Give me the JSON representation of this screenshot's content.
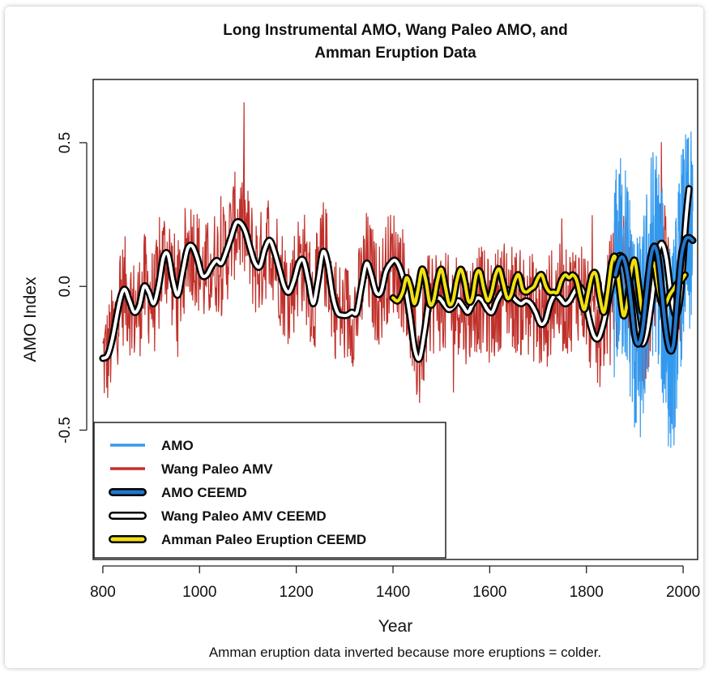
{
  "chart_data": {
    "type": "line",
    "title_line1": "Long Instrumental AMO, Wang Paleo AMO, and",
    "title_line2": "Amman Eruption Data",
    "xlabel": "Year",
    "ylabel": "AMO Index",
    "footnote": "Amman eruption data inverted because more eruptions = colder.",
    "xlim": [
      780,
      2030
    ],
    "ylim": [
      -0.95,
      0.72
    ],
    "xticks": [
      800,
      1000,
      1200,
      1400,
      1600,
      1800,
      2000
    ],
    "xtick_labels": [
      "800",
      "1000",
      "1200",
      "1400",
      "1600",
      "1800",
      "2000"
    ],
    "yticks": [
      -0.5,
      0.0,
      0.5
    ],
    "ytick_labels": [
      "-0.5",
      "0.0",
      "0.5"
    ],
    "grid": false,
    "legend_position": "bottom-left",
    "colors": {
      "amo": "#3399ee",
      "wang": "#c0302a",
      "amo_ceemd": "#2277cc",
      "wang_ceemd": "#ffffff",
      "amman_ceemd": "#f0e010",
      "outline": "#000000"
    },
    "legend": [
      {
        "label": "AMO",
        "style": "thin",
        "color": "#3399ee"
      },
      {
        "label": "Wang Paleo AMV",
        "style": "thin",
        "color": "#c0302a"
      },
      {
        "label": "AMO CEEMD",
        "style": "thick",
        "color": "#2277cc"
      },
      {
        "label": "Wang Paleo AMV CEEMD",
        "style": "thick",
        "color": "#ffffff"
      },
      {
        "label": "Amman Paleo Eruption CEEMD",
        "style": "thick",
        "color": "#f0e010"
      }
    ],
    "series": [
      {
        "name": "Wang Paleo AMV CEEMD",
        "x": [
          800,
          810,
          820,
          835,
          845,
          855,
          865,
          875,
          885,
          895,
          905,
          915,
          925,
          935,
          945,
          955,
          965,
          975,
          985,
          995,
          1005,
          1015,
          1025,
          1035,
          1045,
          1055,
          1065,
          1075,
          1085,
          1095,
          1105,
          1115,
          1125,
          1135,
          1145,
          1155,
          1165,
          1175,
          1185,
          1195,
          1205,
          1215,
          1225,
          1235,
          1245,
          1255,
          1265,
          1275,
          1285,
          1295,
          1305,
          1315,
          1325,
          1335,
          1345,
          1355,
          1365,
          1375,
          1385,
          1395,
          1405,
          1415,
          1425,
          1435,
          1445,
          1455,
          1465,
          1475,
          1485,
          1495,
          1505,
          1515,
          1525,
          1535,
          1545,
          1555,
          1565,
          1575,
          1585,
          1595,
          1605,
          1615,
          1625,
          1635,
          1645,
          1655,
          1665,
          1675,
          1685,
          1695,
          1705,
          1715,
          1725,
          1735,
          1745,
          1755,
          1765,
          1775,
          1785,
          1795,
          1805,
          1815,
          1825,
          1835,
          1845,
          1855,
          1865,
          1875,
          1885,
          1895,
          1905,
          1915,
          1925,
          1935,
          1945,
          1955,
          1965,
          1975,
          1985,
          1995,
          2005,
          2012
        ],
        "y": [
          -0.25,
          -0.24,
          -0.18,
          -0.05,
          -0.01,
          -0.05,
          -0.09,
          -0.07,
          0.0,
          -0.02,
          -0.06,
          0.0,
          0.1,
          0.11,
          0.02,
          -0.03,
          0.05,
          0.13,
          0.14,
          0.1,
          0.04,
          0.04,
          0.07,
          0.09,
          0.08,
          0.12,
          0.17,
          0.22,
          0.22,
          0.19,
          0.13,
          0.08,
          0.07,
          0.13,
          0.16,
          0.12,
          0.06,
          0.0,
          -0.02,
          0.02,
          0.08,
          0.09,
          0.02,
          -0.06,
          0.02,
          0.12,
          0.08,
          -0.03,
          -0.09,
          -0.1,
          -0.1,
          -0.09,
          -0.09,
          0.0,
          0.08,
          0.04,
          -0.02,
          -0.02,
          0.05,
          0.08,
          0.09,
          0.06,
          0.0,
          -0.1,
          -0.22,
          -0.25,
          -0.16,
          -0.05,
          -0.05,
          -0.04,
          -0.06,
          -0.08,
          -0.07,
          -0.05,
          -0.07,
          -0.09,
          -0.06,
          -0.04,
          -0.05,
          -0.08,
          -0.09,
          -0.05,
          -0.02,
          -0.01,
          -0.03,
          -0.05,
          -0.06,
          -0.05,
          -0.06,
          -0.09,
          -0.13,
          -0.12,
          -0.06,
          -0.03,
          -0.04,
          -0.06,
          -0.05,
          -0.02,
          0.0,
          -0.03,
          -0.11,
          -0.17,
          -0.18,
          -0.13,
          -0.05,
          0.03,
          0.1,
          0.1,
          0.05,
          -0.04,
          -0.15,
          -0.2,
          -0.16,
          -0.05,
          0.09,
          0.15,
          0.1,
          -0.03,
          -0.1,
          -0.02,
          0.22,
          0.34
        ]
      },
      {
        "name": "Amman Paleo Eruption CEEMD",
        "x": [
          1400,
          1410,
          1420,
          1428,
          1436,
          1444,
          1452,
          1460,
          1468,
          1476,
          1484,
          1492,
          1500,
          1508,
          1516,
          1524,
          1532,
          1540,
          1548,
          1556,
          1564,
          1572,
          1580,
          1588,
          1596,
          1604,
          1612,
          1620,
          1628,
          1636,
          1644,
          1652,
          1660,
          1668,
          1676,
          1684,
          1692,
          1700,
          1708,
          1716,
          1724,
          1732,
          1740,
          1748,
          1756,
          1764,
          1772,
          1780,
          1788,
          1796,
          1804,
          1812,
          1820,
          1828,
          1836,
          1844,
          1852,
          1860,
          1868,
          1876,
          1884,
          1892,
          1900,
          1908,
          1916,
          1924,
          1932,
          1940,
          1948,
          1956,
          1964,
          1972,
          1980,
          1988,
          1996,
          2004
        ],
        "y": [
          -0.04,
          -0.05,
          -0.02,
          0.03,
          0.0,
          -0.06,
          -0.01,
          0.06,
          0.02,
          -0.06,
          -0.05,
          0.02,
          0.06,
          0.0,
          -0.06,
          -0.05,
          0.02,
          0.06,
          0.02,
          -0.05,
          -0.04,
          0.04,
          0.05,
          -0.01,
          -0.05,
          -0.02,
          0.04,
          0.06,
          0.01,
          -0.04,
          -0.03,
          0.02,
          0.04,
          -0.01,
          -0.02,
          -0.01,
          0.0,
          0.03,
          0.04,
          0.0,
          -0.02,
          -0.02,
          -0.02,
          0.02,
          0.04,
          0.03,
          0.04,
          0.02,
          -0.04,
          -0.08,
          -0.02,
          0.04,
          0.04,
          -0.04,
          -0.09,
          -0.02,
          0.08,
          0.1,
          0.0,
          -0.1,
          -0.06,
          0.05,
          0.09,
          0.0,
          -0.09,
          -0.04,
          0.05,
          0.08,
          0.0,
          -0.06,
          -0.06,
          -0.03,
          -0.01,
          0.01,
          0.02,
          0.04
        ]
      },
      {
        "name": "AMO CEEMD",
        "x": [
          1860,
          1868,
          1876,
          1884,
          1892,
          1900,
          1908,
          1916,
          1924,
          1932,
          1940,
          1948,
          1956,
          1964,
          1972,
          1980,
          1988,
          1996,
          2004,
          2012,
          2020
        ],
        "y": [
          0.04,
          0.09,
          0.1,
          0.05,
          -0.05,
          -0.17,
          -0.2,
          -0.15,
          -0.03,
          0.09,
          0.14,
          0.1,
          -0.02,
          -0.15,
          -0.22,
          -0.2,
          -0.05,
          0.1,
          0.16,
          0.17,
          0.16
        ]
      }
    ]
  }
}
